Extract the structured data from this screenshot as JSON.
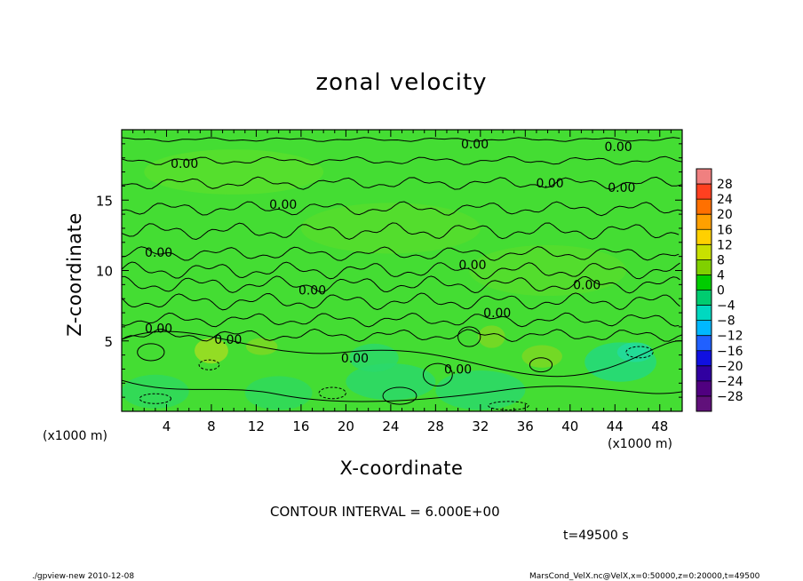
{
  "chart_data": {
    "type": "heatmap",
    "title": "zonal velocity",
    "xlabel": "X-coordinate",
    "ylabel": "Z-coordinate",
    "x_unit_left": "(x1000 m)",
    "x_unit_right": "(x1000 m)",
    "xlim": [
      0,
      50
    ],
    "ylim": [
      0,
      20
    ],
    "xticks": [
      4,
      8,
      12,
      16,
      20,
      24,
      28,
      32,
      36,
      40,
      44,
      48
    ],
    "yticks": [
      5,
      10,
      15
    ],
    "contour_interval_text": "CONTOUR INTERVAL = 6.000E+00",
    "time_text": "t=49500 s",
    "contour_labels": [
      {
        "text": "0.00",
        "x": 31.5,
        "y": 19.0
      },
      {
        "text": "0.00",
        "x": 44.3,
        "y": 18.8
      },
      {
        "text": "0.00",
        "x": 5.6,
        "y": 17.6
      },
      {
        "text": "0.00",
        "x": 38.2,
        "y": 16.2
      },
      {
        "text": "0.00",
        "x": 44.6,
        "y": 15.9
      },
      {
        "text": "0.00",
        "x": 14.4,
        "y": 14.7
      },
      {
        "text": "0.00",
        "x": 3.3,
        "y": 11.3
      },
      {
        "text": "0.00",
        "x": 31.3,
        "y": 10.4
      },
      {
        "text": "0.00",
        "x": 41.5,
        "y": 9.0
      },
      {
        "text": "0.00",
        "x": 17.0,
        "y": 8.6
      },
      {
        "text": "0.00",
        "x": 33.5,
        "y": 7.0
      },
      {
        "text": "0.00",
        "x": 3.3,
        "y": 5.9
      },
      {
        "text": "0.00",
        "x": 9.5,
        "y": 5.1
      },
      {
        "text": "0.00",
        "x": 20.8,
        "y": 3.8
      },
      {
        "text": "0.00",
        "x": 30.0,
        "y": 3.0
      }
    ],
    "colorbar": {
      "levels": [
        28,
        24,
        20,
        16,
        12,
        8,
        4,
        0,
        -4,
        -8,
        -12,
        -16,
        -20,
        -24,
        -28
      ],
      "colors": [
        "#f08080",
        "#ff4020",
        "#ff7000",
        "#ffa000",
        "#ffd000",
        "#c8e000",
        "#80d000",
        "#00cc00",
        "#00cc70",
        "#00d8c0",
        "#00b8ff",
        "#2060ff",
        "#1010e0",
        "#3000a0",
        "#500080",
        "#60107a"
      ]
    },
    "field_background": "#44dd33"
  },
  "footer": {
    "left": "./gpview-new  2010-12-08",
    "right": "MarsCond_VelX.nc@VelX,x=0:50000,z=0:20000,t=49500"
  }
}
